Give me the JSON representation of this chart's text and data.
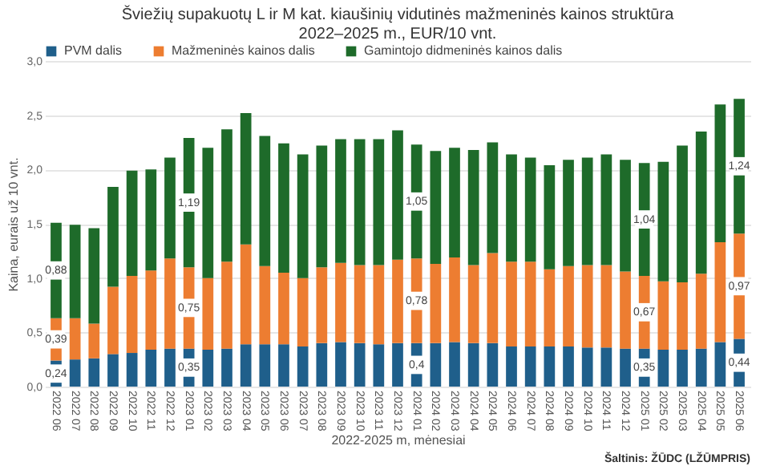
{
  "chart_data": {
    "type": "bar",
    "stacked": true,
    "title": "Šviežių supakuotų L ir M kat. kiaušinių vidutinės mažmeninės kainos struktūra 2022–2025 m., EUR/10 vnt.",
    "xlabel": "2022-2025 m, mėnesiai",
    "ylabel": "Kaina, eurais už 10 vnt.",
    "annotations": [
      "Šaltinis: ŽŪDC (LŽŪMPRIS)"
    ],
    "categories": [
      "2022 06",
      "2022 07",
      "2022 08",
      "2022 09",
      "2022 10",
      "2022 11",
      "2022 12",
      "2023 01",
      "2023 02",
      "2023 03",
      "2023 04",
      "2023 05",
      "2023 06",
      "2023 07",
      "2023 08",
      "2023 09",
      "2023 10",
      "2023 11",
      "2023 12",
      "2024 01",
      "2024 02",
      "2024 03",
      "2024 04",
      "2024 05",
      "2024 06",
      "2024 07",
      "2024 08",
      "2024 09",
      "2024 10",
      "2024 11",
      "2024 12",
      "2025 01",
      "2025 02",
      "2025 03",
      "2025 04",
      "2025 05",
      "2025 06"
    ],
    "series": [
      {
        "name": "PVM dalis",
        "color": "#1f5f8b",
        "values": [
          0.24,
          0.25,
          0.26,
          0.3,
          0.31,
          0.34,
          0.35,
          0.35,
          0.34,
          0.35,
          0.39,
          0.39,
          0.39,
          0.37,
          0.4,
          0.41,
          0.4,
          0.39,
          0.4,
          0.4,
          0.4,
          0.41,
          0.4,
          0.4,
          0.37,
          0.37,
          0.37,
          0.37,
          0.36,
          0.36,
          0.35,
          0.35,
          0.34,
          0.34,
          0.35,
          0.41,
          0.44
        ],
        "value_labels": [
          "0,24",
          null,
          null,
          null,
          null,
          null,
          null,
          "0,35",
          null,
          null,
          null,
          null,
          null,
          null,
          null,
          null,
          null,
          null,
          null,
          "0,4",
          null,
          null,
          null,
          null,
          null,
          null,
          null,
          null,
          null,
          null,
          null,
          "0,35",
          null,
          null,
          null,
          null,
          "0,44"
        ]
      },
      {
        "name": "Mažmeninės kainos dalis",
        "color": "#ed7d31",
        "values": [
          0.39,
          0.38,
          0.32,
          0.62,
          0.71,
          0.73,
          0.83,
          0.75,
          0.66,
          0.8,
          0.92,
          0.72,
          0.66,
          0.63,
          0.7,
          0.73,
          0.72,
          0.73,
          0.77,
          0.78,
          0.73,
          0.78,
          0.72,
          0.83,
          0.78,
          0.78,
          0.71,
          0.74,
          0.76,
          0.76,
          0.71,
          0.67,
          0.63,
          0.62,
          0.69,
          0.92,
          0.97
        ],
        "value_labels": [
          "0,39",
          null,
          null,
          null,
          null,
          null,
          null,
          "0,75",
          null,
          null,
          null,
          null,
          null,
          null,
          null,
          null,
          null,
          null,
          null,
          "0,78",
          null,
          null,
          null,
          null,
          null,
          null,
          null,
          null,
          null,
          null,
          null,
          "0,67",
          null,
          null,
          null,
          null,
          "0,97"
        ]
      },
      {
        "name": "Gamintojo didmeninės kainos dalis",
        "color": "#1e6b2a",
        "values": [
          0.88,
          0.86,
          0.88,
          0.92,
          0.97,
          0.93,
          0.93,
          1.19,
          1.2,
          1.22,
          1.21,
          1.2,
          1.19,
          1.14,
          1.12,
          1.14,
          1.16,
          1.16,
          1.19,
          1.05,
          1.04,
          1.01,
          1.06,
          1.02,
          0.99,
          0.96,
          0.96,
          0.98,
          0.99,
          1.02,
          1.03,
          1.04,
          1.1,
          1.26,
          1.31,
          1.27,
          1.24
        ],
        "value_labels": [
          "0,88",
          null,
          null,
          null,
          null,
          null,
          null,
          "1,19",
          null,
          null,
          null,
          null,
          null,
          null,
          null,
          null,
          null,
          null,
          null,
          "1,05",
          null,
          null,
          null,
          null,
          null,
          null,
          null,
          null,
          null,
          null,
          null,
          "1,04",
          null,
          null,
          null,
          null,
          "1,24"
        ]
      }
    ],
    "ylim": [
      0,
      3.0
    ],
    "yticks": [
      {
        "value": 0,
        "label": "0,0"
      },
      {
        "value": 0.5,
        "label": "0,5"
      },
      {
        "value": 1.0,
        "label": "1,0"
      },
      {
        "value": 1.5,
        "label": "1,5"
      },
      {
        "value": 2.0,
        "label": "2,0"
      },
      {
        "value": 2.5,
        "label": "2,5"
      },
      {
        "value": 3.0,
        "label": "3,0"
      }
    ],
    "grid": "y",
    "legend": "top"
  }
}
